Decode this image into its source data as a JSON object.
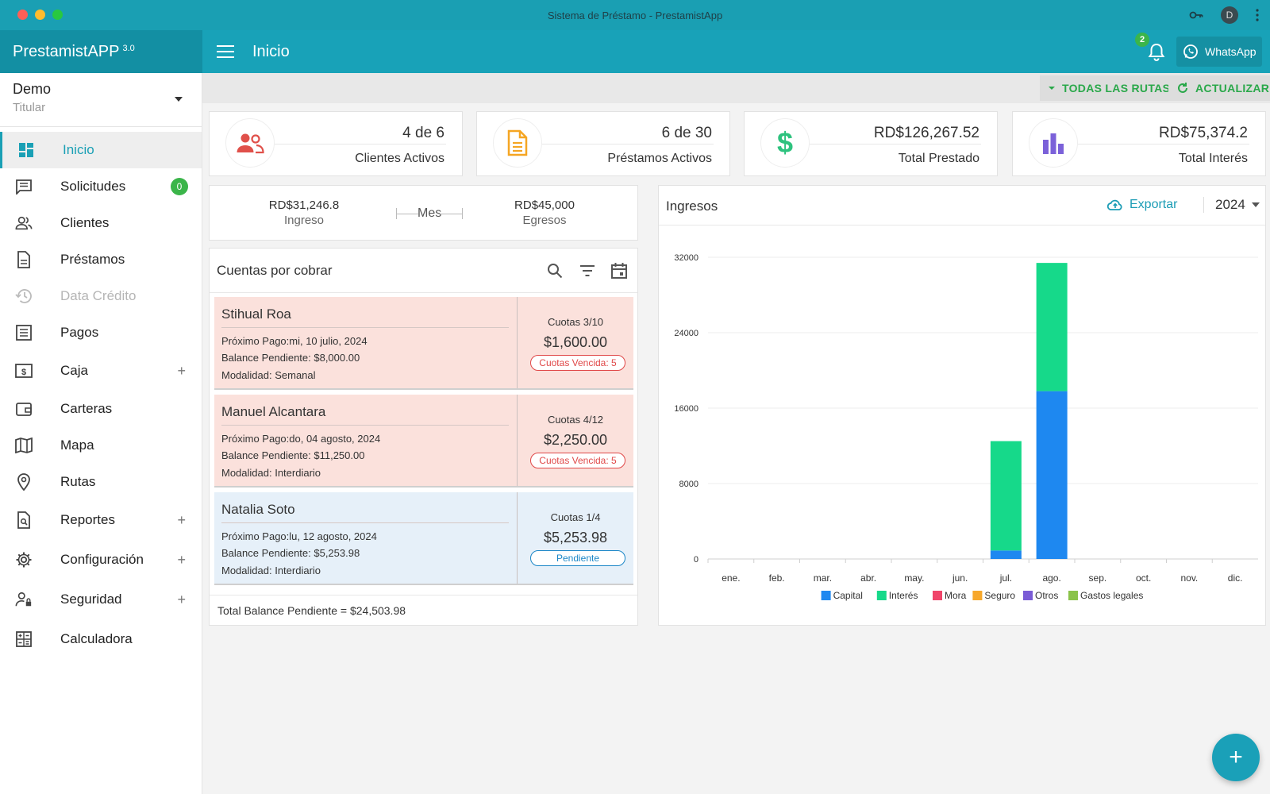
{
  "window": {
    "title": "Sistema de Préstamo - PrestamistApp",
    "avatar_letter": "D"
  },
  "header": {
    "brand": "PrestamistAPP",
    "version": "3.0",
    "page_title": "Inicio",
    "notifications": "2",
    "whatsapp": "WhatsApp"
  },
  "user": {
    "name": "Demo",
    "role": "Titular"
  },
  "sidebar": {
    "items": [
      {
        "label": "Inicio"
      },
      {
        "label": "Solicitudes",
        "badge": "0"
      },
      {
        "label": "Clientes"
      },
      {
        "label": "Préstamos"
      },
      {
        "label": "Data Crédito"
      },
      {
        "label": "Pagos"
      },
      {
        "label": "Caja"
      },
      {
        "label": "Carteras"
      },
      {
        "label": "Mapa"
      },
      {
        "label": "Rutas"
      },
      {
        "label": "Reportes"
      },
      {
        "label": "Configuración"
      },
      {
        "label": "Seguridad"
      },
      {
        "label": "Calculadora"
      }
    ],
    "plus": "+"
  },
  "toolbar": {
    "routes": "TODAS LAS RUTAS",
    "refresh": "ACTUALIZAR"
  },
  "stats": [
    {
      "value": "4 de 6",
      "label": "Clientes Activos",
      "color": "#e0504a"
    },
    {
      "value": "6 de 30",
      "label": "Préstamos Activos",
      "color": "#f5a623"
    },
    {
      "value": "RD$126,267.52",
      "label": "Total Prestado",
      "color": "#2ec27e"
    },
    {
      "value": "RD$75,374.2",
      "label": "Total Interés",
      "color": "#7b61d9"
    }
  ],
  "month": {
    "income": "RD$31,246.8",
    "income_label": "Ingreso",
    "period": "Mes",
    "expense": "RD$45,000",
    "expense_label": "Egresos"
  },
  "cuentas": {
    "title": "Cuentas por cobrar",
    "loans": [
      {
        "name": "Stihual Roa",
        "next": "Próximo Pago:mi, 10 julio, 2024",
        "balance": "Balance Pendiente: $8,000.00",
        "mode": "Modalidad: Semanal",
        "cuotas": "Cuotas 3/10",
        "amount": "$1,600.00",
        "status": "Cuotas Vencida: 5"
      },
      {
        "name": "Manuel Alcantara",
        "next": "Próximo Pago:do, 04 agosto, 2024",
        "balance": "Balance Pendiente: $11,250.00",
        "mode": "Modalidad: Interdiario",
        "cuotas": "Cuotas 4/12",
        "amount": "$2,250.00",
        "status": "Cuotas Vencida: 5"
      },
      {
        "name": "Natalia Soto",
        "next": "Próximo Pago:lu, 12 agosto, 2024",
        "balance": "Balance Pendiente: $5,253.98",
        "mode": "Modalidad: Interdiario",
        "cuotas": "Cuotas 1/4",
        "amount": "$5,253.98",
        "status": "Pendiente"
      }
    ],
    "total": "Total Balance Pendiente = $24,503.98"
  },
  "chart_panel": {
    "title": "Ingresos",
    "export": "Exportar",
    "year": "2024"
  },
  "chart_data": {
    "type": "bar",
    "stacked": true,
    "categories": [
      "ene.",
      "feb.",
      "mar.",
      "abr.",
      "may.",
      "jun.",
      "jul.",
      "ago.",
      "sep.",
      "oct.",
      "nov.",
      "dic."
    ],
    "series": [
      {
        "name": "Capital",
        "color": "#1e88f0",
        "values": [
          0,
          0,
          0,
          0,
          0,
          0,
          900,
          17800,
          0,
          0,
          0,
          0
        ]
      },
      {
        "name": "Interés",
        "color": "#16d98a",
        "values": [
          0,
          0,
          0,
          0,
          0,
          0,
          11600,
          13600,
          0,
          0,
          0,
          0
        ]
      },
      {
        "name": "Mora",
        "color": "#f0456a",
        "values": [
          0,
          0,
          0,
          0,
          0,
          0,
          0,
          0,
          0,
          0,
          0,
          0
        ]
      },
      {
        "name": "Seguro",
        "color": "#f7a82c",
        "values": [
          0,
          0,
          0,
          0,
          0,
          0,
          0,
          0,
          0,
          0,
          0,
          0
        ]
      },
      {
        "name": "Otros",
        "color": "#7a5cd6",
        "values": [
          0,
          0,
          0,
          0,
          0,
          0,
          0,
          0,
          0,
          0,
          0,
          0
        ]
      },
      {
        "name": "Gastos legales",
        "color": "#8bc34a",
        "values": [
          0,
          0,
          0,
          0,
          0,
          0,
          0,
          0,
          0,
          0,
          0,
          0
        ]
      }
    ],
    "yticks": [
      "0",
      "8000",
      "16000",
      "24000",
      "32000"
    ],
    "ylim": [
      0,
      32000
    ],
    "grid": true,
    "legend": "bottom"
  },
  "fab": "+"
}
